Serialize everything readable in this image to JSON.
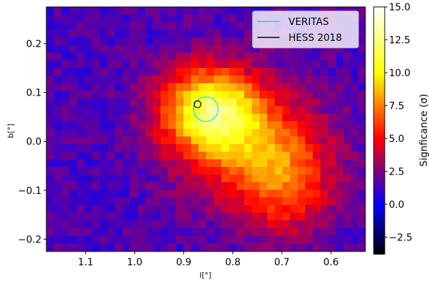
{
  "chart_data": {
    "type": "heatmap",
    "title": "",
    "xlabel": "l[°]",
    "ylabel": "b[°]",
    "x_ticks": [
      "1.1",
      "1.0",
      "0.9",
      "0.8",
      "0.7",
      "0.6"
    ],
    "y_ticks": [
      "0.2",
      "0.1",
      "0.0",
      "−0.1",
      "−0.2"
    ],
    "x_tick_values": [
      1.1,
      1.0,
      0.9,
      0.8,
      0.7,
      0.6
    ],
    "y_tick_values": [
      0.2,
      0.1,
      0.0,
      -0.1,
      -0.2
    ],
    "xlim": [
      1.18,
      0.53
    ],
    "ylim": [
      -0.225,
      0.275
    ],
    "x_inverted": true,
    "colorbar": {
      "label": "Signficance (σ)",
      "min": -3.8,
      "max": 15.0,
      "ticks": [
        "15.0",
        "12.5",
        "10.0",
        "7.5",
        "5.0",
        "2.5",
        "0.0",
        "−2.5"
      ],
      "tick_values": [
        15.0,
        12.5,
        10.0,
        7.5,
        5.0,
        2.5,
        0.0,
        -2.5
      ],
      "colormap": [
        "#000000",
        "#0000ff",
        "#ff0000",
        "#ffff00",
        "#ffffff"
      ]
    },
    "background_level": 1.5,
    "emission_components": [
      {
        "l": 0.845,
        "b": 0.065,
        "sl": 0.07,
        "sb": 0.06,
        "peak": 9.5
      },
      {
        "l": 0.75,
        "b": -0.02,
        "sl": 0.1,
        "sb": 0.08,
        "peak": 5.0
      },
      {
        "l": 0.69,
        "b": -0.1,
        "sl": 0.06,
        "sb": 0.07,
        "peak": 3.2
      }
    ],
    "markers": [
      {
        "name": "VERITAS",
        "l": 0.855,
        "b": 0.066,
        "radius_deg": 0.025,
        "color": "#00e5e5"
      },
      {
        "name": "HESS 2018",
        "l": 0.872,
        "b": 0.076,
        "radius_deg": 0.007,
        "color": "#000000"
      }
    ],
    "legend": {
      "placement": "top-right",
      "entries": [
        {
          "label": "VERITAS",
          "color": "#00e5e5"
        },
        {
          "label": "HESS 2018",
          "color": "#000000"
        }
      ]
    },
    "grid": false
  }
}
